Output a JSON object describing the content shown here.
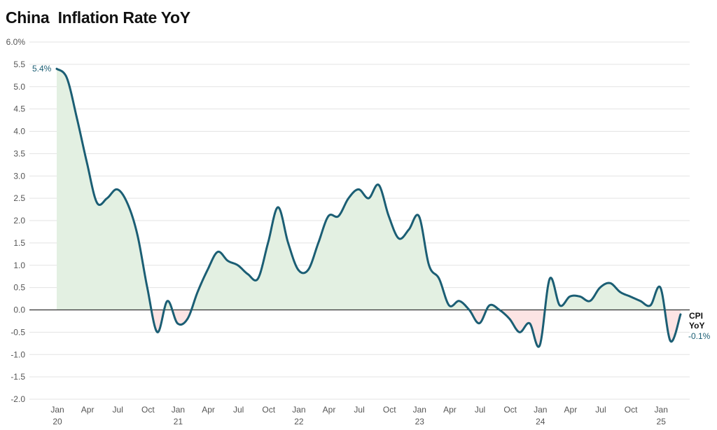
{
  "chart_data": {
    "type": "line",
    "title": "China  Inflation Rate YoY",
    "xlabel": "",
    "ylabel": "",
    "ylim": [
      -2.0,
      6.0
    ],
    "y_ticks": [
      "6.0%",
      "5.5",
      "5.0",
      "4.5",
      "4.0",
      "3.5",
      "3.0",
      "2.5",
      "2.0",
      "1.5",
      "1.0",
      "0.5",
      "0.0",
      "-0.5",
      "-1.0",
      "-1.5",
      "-2.0"
    ],
    "x_ticks": [
      {
        "label": "Jan",
        "sub": "20"
      },
      {
        "label": "Apr",
        "sub": ""
      },
      {
        "label": "Jul",
        "sub": ""
      },
      {
        "label": "Oct",
        "sub": ""
      },
      {
        "label": "Jan",
        "sub": "21"
      },
      {
        "label": "Apr",
        "sub": ""
      },
      {
        "label": "Jul",
        "sub": ""
      },
      {
        "label": "Oct",
        "sub": ""
      },
      {
        "label": "Jan",
        "sub": "22"
      },
      {
        "label": "Apr",
        "sub": ""
      },
      {
        "label": "Jul",
        "sub": ""
      },
      {
        "label": "Oct",
        "sub": ""
      },
      {
        "label": "Jan",
        "sub": "23"
      },
      {
        "label": "Apr",
        "sub": ""
      },
      {
        "label": "Jul",
        "sub": ""
      },
      {
        "label": "Oct",
        "sub": ""
      },
      {
        "label": "Jan",
        "sub": "24"
      },
      {
        "label": "Apr",
        "sub": ""
      },
      {
        "label": "Jul",
        "sub": ""
      },
      {
        "label": "Oct",
        "sub": ""
      },
      {
        "label": "Jan",
        "sub": "25"
      }
    ],
    "series": [
      {
        "name": "CPI YoY",
        "color": "#1b5e74",
        "x": [
          "2020-01",
          "2020-02",
          "2020-03",
          "2020-04",
          "2020-05",
          "2020-06",
          "2020-07",
          "2020-08",
          "2020-09",
          "2020-10",
          "2020-11",
          "2020-12",
          "2021-01",
          "2021-02",
          "2021-03",
          "2021-04",
          "2021-05",
          "2021-06",
          "2021-07",
          "2021-08",
          "2021-09",
          "2021-10",
          "2021-11",
          "2021-12",
          "2022-01",
          "2022-02",
          "2022-03",
          "2022-04",
          "2022-05",
          "2022-06",
          "2022-07",
          "2022-08",
          "2022-09",
          "2022-10",
          "2022-11",
          "2022-12",
          "2023-01",
          "2023-02",
          "2023-03",
          "2023-04",
          "2023-05",
          "2023-06",
          "2023-07",
          "2023-08",
          "2023-09",
          "2023-10",
          "2023-11",
          "2023-12",
          "2024-01",
          "2024-02",
          "2024-03",
          "2024-04",
          "2024-05",
          "2024-06",
          "2024-07",
          "2024-08",
          "2024-09",
          "2024-10",
          "2024-11",
          "2024-12",
          "2025-01",
          "2025-02",
          "2025-03"
        ],
        "values": [
          5.4,
          5.2,
          4.3,
          3.3,
          2.4,
          2.5,
          2.7,
          2.4,
          1.7,
          0.5,
          -0.5,
          0.2,
          -0.3,
          -0.2,
          0.4,
          0.9,
          1.3,
          1.1,
          1.0,
          0.8,
          0.7,
          1.5,
          2.3,
          1.5,
          0.9,
          0.9,
          1.5,
          2.1,
          2.1,
          2.5,
          2.7,
          2.5,
          2.8,
          2.1,
          1.6,
          1.8,
          2.1,
          1.0,
          0.7,
          0.1,
          0.2,
          0.0,
          -0.3,
          0.1,
          0.0,
          -0.2,
          -0.5,
          -0.3,
          -0.8,
          0.7,
          0.1,
          0.3,
          0.3,
          0.2,
          0.5,
          0.6,
          0.4,
          0.3,
          0.2,
          0.1,
          0.5,
          -0.7,
          -0.1
        ]
      }
    ],
    "annotations": {
      "start_value": "5.4%",
      "end_label_line1": "CPI",
      "end_label_line2": "YoY",
      "end_value": "-0.1%"
    },
    "colors": {
      "line": "#1b5e74",
      "positive_fill": "#e3f0e2",
      "negative_fill": "#fce4e4",
      "zero_line": "#333333"
    }
  }
}
